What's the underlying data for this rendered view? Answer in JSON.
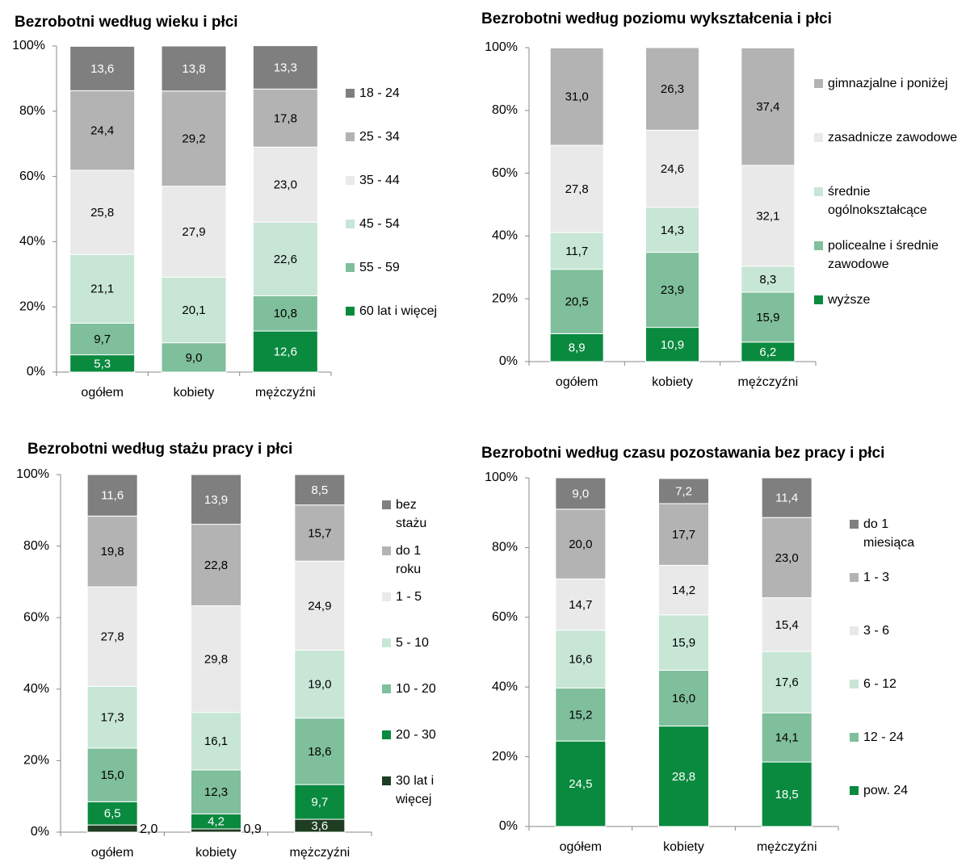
{
  "chart_data": [
    {
      "type": "bar",
      "stacked": true,
      "title": "Bezrobotni według wieku i płci",
      "categories": [
        "ogółem",
        "kobiety",
        "mężczyźni"
      ],
      "ylim": [
        0,
        100
      ],
      "yticks": [
        {
          "value": 0,
          "label": "0%"
        },
        {
          "value": 20,
          "label": "20%"
        },
        {
          "value": 40,
          "label": "40%"
        },
        {
          "value": 60,
          "label": "60%"
        },
        {
          "value": 80,
          "label": "80%"
        },
        {
          "value": 100,
          "label": "100%"
        }
      ],
      "series": [
        {
          "name": "18 - 24",
          "color": "#7f7f7f",
          "values": [
            13.6,
            13.8,
            13.3
          ],
          "value_labels": [
            "13,6",
            "13,8",
            "13,3"
          ]
        },
        {
          "name": "25 - 34",
          "color": "#b3b3b3",
          "values": [
            24.4,
            29.2,
            17.8
          ],
          "value_labels": [
            "24,4",
            "29,2",
            "17,8"
          ]
        },
        {
          "name": "35 - 44",
          "color": "#e9e9e9",
          "values": [
            25.8,
            27.9,
            23.0
          ],
          "value_labels": [
            "25,8",
            "27,9",
            "23,0"
          ]
        },
        {
          "name": "45 - 54",
          "color": "#c7e6d6",
          "values": [
            21.1,
            20.1,
            22.6
          ],
          "value_labels": [
            "21,1",
            "20,1",
            "22,6"
          ]
        },
        {
          "name": "55 - 59",
          "color": "#7fbf9c",
          "values": [
            9.7,
            9.0,
            10.8
          ],
          "value_labels": [
            "9,7",
            "9,0",
            "10,8"
          ]
        },
        {
          "name": "60 lat i więcej",
          "color": "#0a8a3f",
          "values": [
            5.3,
            null,
            12.6
          ],
          "value_labels": [
            "5,3",
            null,
            "12,6"
          ]
        }
      ]
    },
    {
      "type": "bar",
      "stacked": true,
      "title": "Bezrobotni według poziomu wykształcenia i płci",
      "categories": [
        "ogółem",
        "kobiety",
        "mężczyźni"
      ],
      "ylim": [
        0,
        100
      ],
      "yticks": [
        {
          "value": 0,
          "label": "0%"
        },
        {
          "value": 20,
          "label": "20%"
        },
        {
          "value": 40,
          "label": "40%"
        },
        {
          "value": 60,
          "label": "60%"
        },
        {
          "value": 80,
          "label": "80%"
        },
        {
          "value": 100,
          "label": "100%"
        }
      ],
      "series": [
        {
          "name": "gimnazjalne i poniżej",
          "color": "#b3b3b3",
          "values": [
            31.0,
            26.3,
            37.4
          ],
          "value_labels": [
            "31,0",
            "26,3",
            "37,4"
          ]
        },
        {
          "name": "zasadnicze zawodowe",
          "color": "#e9e9e9",
          "values": [
            27.8,
            24.6,
            32.1
          ],
          "value_labels": [
            "27,8",
            "24,6",
            "32,1"
          ]
        },
        {
          "name": "średnie ogólnokształcące",
          "color": "#c7e6d6",
          "values": [
            11.7,
            14.3,
            8.3
          ],
          "value_labels": [
            "11,7",
            "14,3",
            "8,3"
          ]
        },
        {
          "name": "policealne i średnie zawodowe",
          "color": "#7fbf9c",
          "values": [
            20.5,
            23.9,
            15.9
          ],
          "value_labels": [
            "20,5",
            "23,9",
            "15,9"
          ]
        },
        {
          "name": "wyższe",
          "color": "#0a8a3f",
          "values": [
            8.9,
            10.9,
            6.2
          ],
          "value_labels": [
            "8,9",
            "10,9",
            "6,2"
          ]
        }
      ]
    },
    {
      "type": "bar",
      "stacked": true,
      "title": "Bezrobotni według stażu pracy i płci",
      "categories": [
        "ogółem",
        "kobiety",
        "mężczyźni"
      ],
      "ylim": [
        0,
        100
      ],
      "yticks": [
        {
          "value": 0,
          "label": "0%"
        },
        {
          "value": 20,
          "label": "20%"
        },
        {
          "value": 40,
          "label": "40%"
        },
        {
          "value": 60,
          "label": "60%"
        },
        {
          "value": 80,
          "label": "80%"
        },
        {
          "value": 100,
          "label": "100%"
        }
      ],
      "series": [
        {
          "name": "bez stażu",
          "color": "#7f7f7f",
          "values": [
            11.6,
            13.9,
            8.5
          ],
          "value_labels": [
            "11,6",
            "13,9",
            "8,5"
          ]
        },
        {
          "name": "do 1 roku",
          "color": "#b3b3b3",
          "values": [
            19.8,
            22.8,
            15.7
          ],
          "value_labels": [
            "19,8",
            "22,8",
            "15,7"
          ]
        },
        {
          "name": "1 - 5",
          "color": "#e9e9e9",
          "values": [
            27.8,
            29.8,
            24.9
          ],
          "value_labels": [
            "27,8",
            "29,8",
            "24,9"
          ]
        },
        {
          "name": "5 - 10",
          "color": "#c7e6d6",
          "values": [
            17.3,
            16.1,
            19.0
          ],
          "value_labels": [
            "17,3",
            "16,1",
            "19,0"
          ]
        },
        {
          "name": "10 - 20",
          "color": "#7fbf9c",
          "values": [
            15.0,
            12.3,
            18.6
          ],
          "value_labels": [
            "15,0",
            "12,3",
            "18,6"
          ]
        },
        {
          "name": "20 - 30",
          "color": "#0a8a3f",
          "values": [
            6.5,
            4.2,
            9.7
          ],
          "value_labels": [
            "6,5",
            "4,2",
            "9,7"
          ]
        },
        {
          "name": "30 lat i więcej",
          "color": "#1f3d22",
          "values": [
            2.0,
            0.9,
            3.6
          ],
          "value_labels": [
            "2,0",
            "0,9",
            "3,6"
          ]
        }
      ]
    },
    {
      "type": "bar",
      "stacked": true,
      "title": "Bezrobotni według czasu pozostawania bez pracy i płci",
      "categories": [
        "ogółem",
        "kobiety",
        "mężczyźni"
      ],
      "ylim": [
        0,
        100
      ],
      "yticks": [
        {
          "value": 0,
          "label": "0%"
        },
        {
          "value": 20,
          "label": "20%"
        },
        {
          "value": 40,
          "label": "40%"
        },
        {
          "value": 60,
          "label": "60%"
        },
        {
          "value": 80,
          "label": "80%"
        },
        {
          "value": 100,
          "label": "100%"
        }
      ],
      "series": [
        {
          "name": "do 1 miesiąca",
          "color": "#7f7f7f",
          "values": [
            9.0,
            7.2,
            11.4
          ],
          "value_labels": [
            "9,0",
            "7,2",
            "11,4"
          ]
        },
        {
          "name": "1 - 3",
          "color": "#b3b3b3",
          "values": [
            20.0,
            17.7,
            23.0
          ],
          "value_labels": [
            "20,0",
            "17,7",
            "23,0"
          ]
        },
        {
          "name": "3 - 6",
          "color": "#e9e9e9",
          "values": [
            14.7,
            14.2,
            15.4
          ],
          "value_labels": [
            "14,7",
            "14,2",
            "15,4"
          ]
        },
        {
          "name": "6 - 12",
          "color": "#c7e6d6",
          "values": [
            16.6,
            15.9,
            17.6
          ],
          "value_labels": [
            "16,6",
            "15,9",
            "17,6"
          ]
        },
        {
          "name": "12 - 24",
          "color": "#7fbf9c",
          "values": [
            15.2,
            16.0,
            14.1
          ],
          "value_labels": [
            "15,2",
            "16,0",
            "14,1"
          ]
        },
        {
          "name": "pow. 24",
          "color": "#0a8a3f",
          "values": [
            24.5,
            28.8,
            18.5
          ],
          "value_labels": [
            "24,5",
            "28,8",
            "18,5"
          ]
        }
      ]
    }
  ]
}
